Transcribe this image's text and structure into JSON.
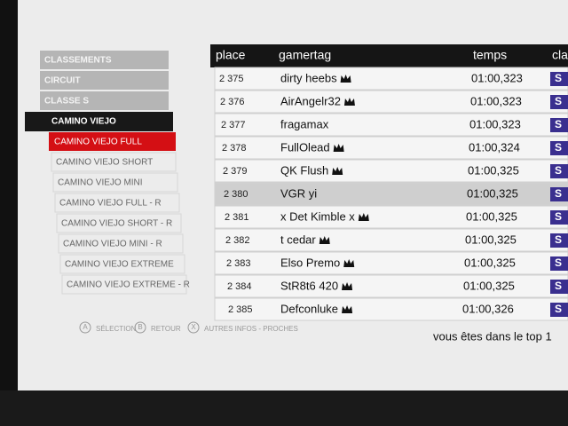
{
  "menu": {
    "headers": [
      "CLASSEMENTS",
      "CIRCUIT",
      "CLASSE S"
    ],
    "track": "CAMINO VIEJO",
    "selected": "CAMINO VIEJO FULL",
    "items": [
      "CAMINO VIEJO SHORT",
      "CAMINO VIEJO MINI",
      "CAMINO VIEJO FULL - R",
      "CAMINO VIEJO SHORT - R",
      "CAMINO VIEJO MINI - R",
      "CAMINO VIEJO EXTREME",
      "CAMINO VIEJO EXTREME - R"
    ]
  },
  "table": {
    "columns": [
      "place",
      "gamertag",
      "temps",
      "cla"
    ],
    "class_badge": "S",
    "highlight_row": 5,
    "rows": [
      {
        "place": "2 375",
        "gamertag": "dirty heebs",
        "crown": true,
        "temps": "01:00,323"
      },
      {
        "place": "2 376",
        "gamertag": "AirAngelr32",
        "crown": true,
        "temps": "01:00,323"
      },
      {
        "place": "2 377",
        "gamertag": "fragamax",
        "crown": false,
        "temps": "01:00,323"
      },
      {
        "place": "2 378",
        "gamertag": "FullOlead",
        "crown": true,
        "temps": "01:00,324"
      },
      {
        "place": "2 379",
        "gamertag": "QK Flush",
        "crown": true,
        "temps": "01:00,325"
      },
      {
        "place": "2 380",
        "gamertag": "VGR yi",
        "crown": false,
        "temps": "01:00,325"
      },
      {
        "place": "2 381",
        "gamertag": "x Det Kimble x",
        "crown": true,
        "temps": "01:00,325"
      },
      {
        "place": "2 382",
        "gamertag": "t cedar",
        "crown": true,
        "temps": "01:00,325"
      },
      {
        "place": "2 383",
        "gamertag": "Elso Premo",
        "crown": true,
        "temps": "01:00,325"
      },
      {
        "place": "2 384",
        "gamertag": "StR8t6 420",
        "crown": true,
        "temps": "01:00,325"
      },
      {
        "place": "2 385",
        "gamertag": "Defconluke",
        "crown": true,
        "temps": "01:00,326"
      }
    ]
  },
  "footer": {
    "rank_text": "vous êtes dans le top 1",
    "buttons": [
      {
        "key": "A",
        "label": "SÉLECTION"
      },
      {
        "key": "B",
        "label": "RETOUR"
      },
      {
        "key": "X",
        "label": "AUTRES INFOS - PROCHES"
      }
    ]
  }
}
